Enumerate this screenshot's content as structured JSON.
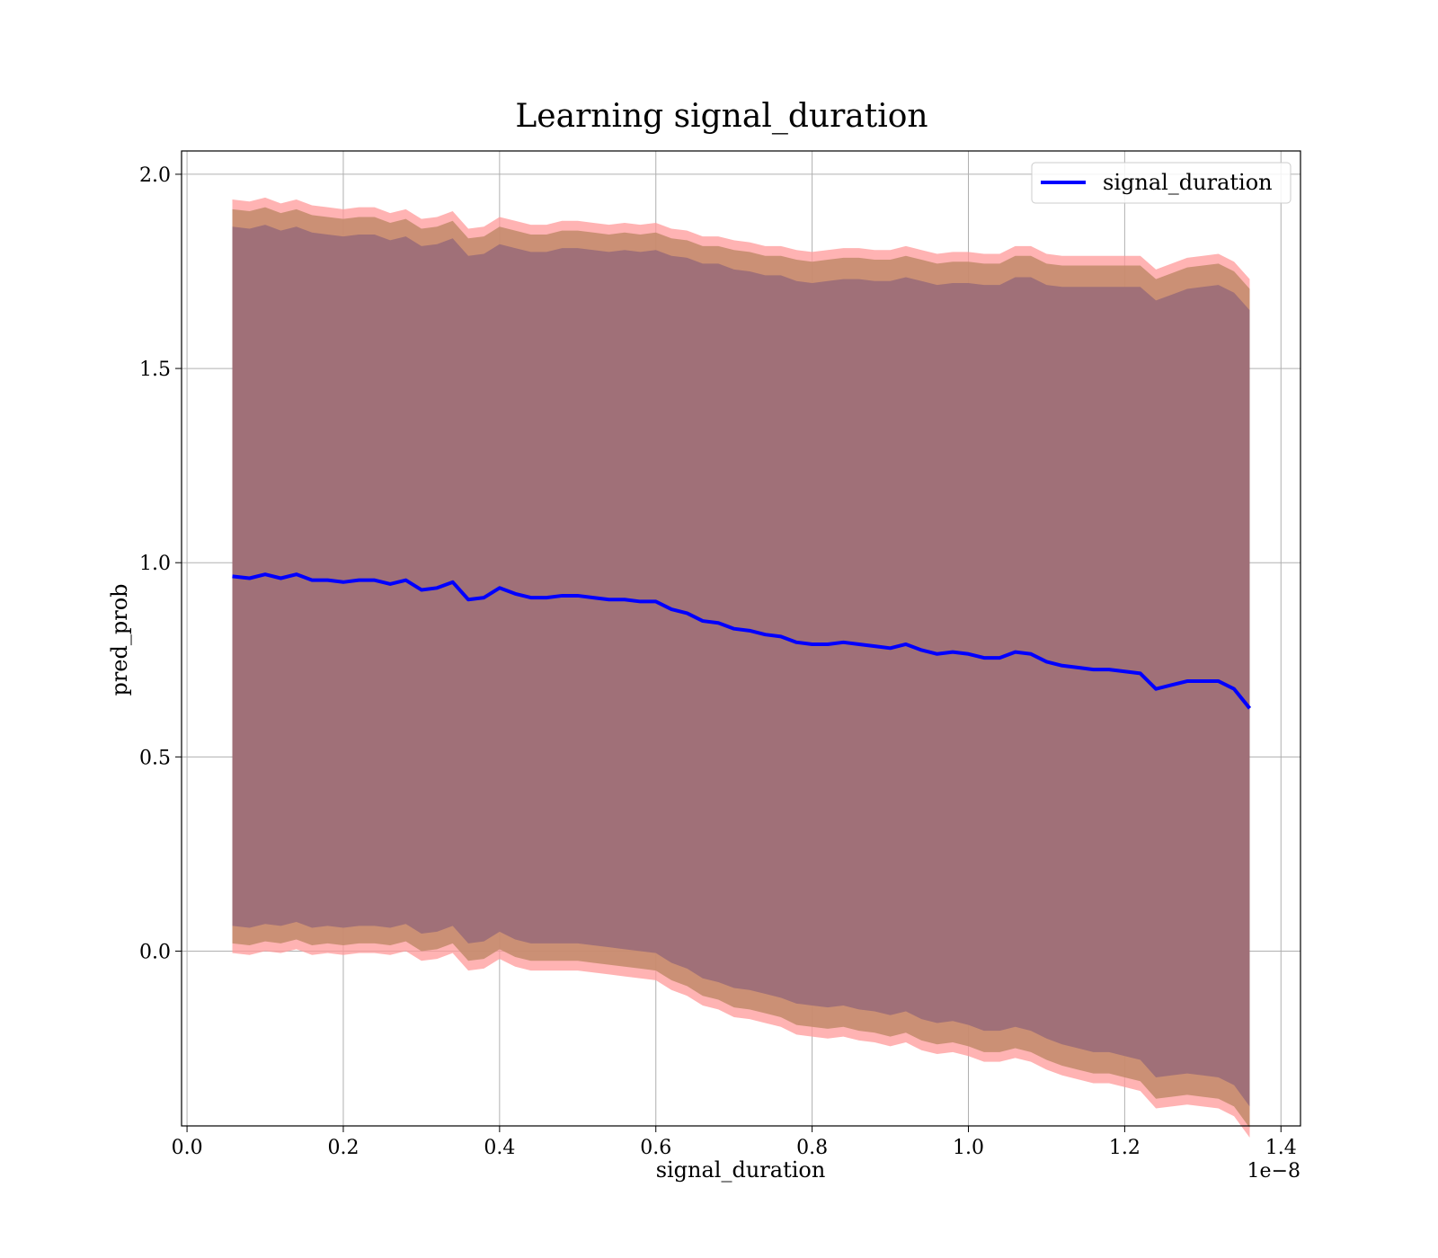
{
  "chart_data": {
    "type": "line",
    "title": "Learning signal_duration",
    "xlabel": "signal_duration",
    "ylabel": "pred_prob",
    "x_offset_label": "1e−8",
    "xlim": [
      -0.007,
      1.425
    ],
    "ylim": [
      -0.45,
      2.06
    ],
    "x_ticks": [
      0.0,
      0.2,
      0.4,
      0.6,
      0.8,
      1.0,
      1.2,
      1.4
    ],
    "x_tick_labels": [
      "0.0",
      "0.2",
      "0.4",
      "0.6",
      "0.8",
      "1.0",
      "1.2",
      "1.4"
    ],
    "y_ticks": [
      0.0,
      0.5,
      1.0,
      1.5,
      2.0
    ],
    "y_tick_labels": [
      "0.0",
      "0.5",
      "1.0",
      "1.5",
      "2.0"
    ],
    "grid": true,
    "legend_position": "top-right",
    "colors": {
      "line": "#0000ff",
      "outer_band": "#ff9999",
      "middle_band": "#c28a6a",
      "inner_band": "#a07078"
    },
    "x": [
      0.058,
      0.08,
      0.1,
      0.12,
      0.14,
      0.16,
      0.18,
      0.2,
      0.22,
      0.24,
      0.26,
      0.28,
      0.3,
      0.32,
      0.34,
      0.36,
      0.38,
      0.4,
      0.42,
      0.44,
      0.46,
      0.48,
      0.5,
      0.52,
      0.54,
      0.56,
      0.58,
      0.6,
      0.62,
      0.64,
      0.66,
      0.68,
      0.7,
      0.72,
      0.74,
      0.76,
      0.78,
      0.8,
      0.82,
      0.84,
      0.86,
      0.88,
      0.9,
      0.92,
      0.94,
      0.96,
      0.98,
      1.0,
      1.02,
      1.04,
      1.06,
      1.08,
      1.1,
      1.12,
      1.14,
      1.16,
      1.18,
      1.2,
      1.22,
      1.24,
      1.26,
      1.28,
      1.3,
      1.32,
      1.34,
      1.36
    ],
    "series": [
      {
        "name": "signal_duration",
        "values": [
          0.965,
          0.96,
          0.97,
          0.96,
          0.97,
          0.955,
          0.955,
          0.95,
          0.955,
          0.955,
          0.945,
          0.955,
          0.93,
          0.935,
          0.95,
          0.905,
          0.91,
          0.935,
          0.92,
          0.91,
          0.91,
          0.915,
          0.915,
          0.91,
          0.905,
          0.905,
          0.9,
          0.9,
          0.88,
          0.87,
          0.85,
          0.845,
          0.83,
          0.825,
          0.815,
          0.81,
          0.795,
          0.79,
          0.79,
          0.795,
          0.79,
          0.785,
          0.78,
          0.79,
          0.775,
          0.765,
          0.77,
          0.765,
          0.755,
          0.755,
          0.77,
          0.765,
          0.745,
          0.735,
          0.73,
          0.725,
          0.725,
          0.72,
          0.715,
          0.675,
          0.685,
          0.695,
          0.695,
          0.695,
          0.675,
          0.625
        ]
      }
    ],
    "bands": [
      {
        "sigma": 3.0,
        "margin": [
          0.97,
          0.97,
          0.97,
          0.965,
          0.965,
          0.965,
          0.96,
          0.96,
          0.96,
          0.96,
          0.955,
          0.955,
          0.955,
          0.955,
          0.955,
          0.955,
          0.955,
          0.955,
          0.96,
          0.96,
          0.96,
          0.965,
          0.965,
          0.965,
          0.965,
          0.97,
          0.97,
          0.975,
          0.98,
          0.985,
          0.99,
          0.995,
          1.0,
          1.0,
          1.0,
          1.005,
          1.01,
          1.01,
          1.015,
          1.015,
          1.02,
          1.02,
          1.025,
          1.025,
          1.03,
          1.03,
          1.03,
          1.035,
          1.04,
          1.04,
          1.045,
          1.05,
          1.05,
          1.055,
          1.06,
          1.065,
          1.065,
          1.07,
          1.075,
          1.08,
          1.085,
          1.09,
          1.095,
          1.1,
          1.1,
          1.105
        ]
      },
      {
        "sigma": 2.7,
        "margin": [
          0.945,
          0.945,
          0.945,
          0.94,
          0.94,
          0.94,
          0.935,
          0.935,
          0.935,
          0.935,
          0.93,
          0.93,
          0.93,
          0.93,
          0.93,
          0.93,
          0.93,
          0.93,
          0.935,
          0.935,
          0.935,
          0.94,
          0.94,
          0.94,
          0.94,
          0.945,
          0.945,
          0.95,
          0.955,
          0.96,
          0.965,
          0.97,
          0.975,
          0.975,
          0.975,
          0.98,
          0.985,
          0.985,
          0.99,
          0.99,
          0.995,
          0.995,
          1.0,
          1.0,
          1.005,
          1.005,
          1.005,
          1.01,
          1.015,
          1.015,
          1.02,
          1.025,
          1.025,
          1.03,
          1.035,
          1.04,
          1.04,
          1.045,
          1.05,
          1.055,
          1.06,
          1.065,
          1.07,
          1.075,
          1.075,
          1.08
        ]
      },
      {
        "sigma": 2.5,
        "margin": [
          0.9,
          0.9,
          0.9,
          0.895,
          0.895,
          0.895,
          0.89,
          0.89,
          0.89,
          0.89,
          0.885,
          0.885,
          0.885,
          0.885,
          0.885,
          0.885,
          0.885,
          0.885,
          0.89,
          0.89,
          0.89,
          0.895,
          0.895,
          0.895,
          0.895,
          0.9,
          0.9,
          0.905,
          0.91,
          0.915,
          0.92,
          0.925,
          0.925,
          0.925,
          0.925,
          0.93,
          0.93,
          0.93,
          0.935,
          0.935,
          0.94,
          0.94,
          0.945,
          0.945,
          0.95,
          0.95,
          0.95,
          0.955,
          0.96,
          0.96,
          0.965,
          0.97,
          0.97,
          0.975,
          0.98,
          0.985,
          0.985,
          0.99,
          0.995,
          1.0,
          1.005,
          1.01,
          1.015,
          1.02,
          1.02,
          1.025
        ]
      }
    ]
  }
}
